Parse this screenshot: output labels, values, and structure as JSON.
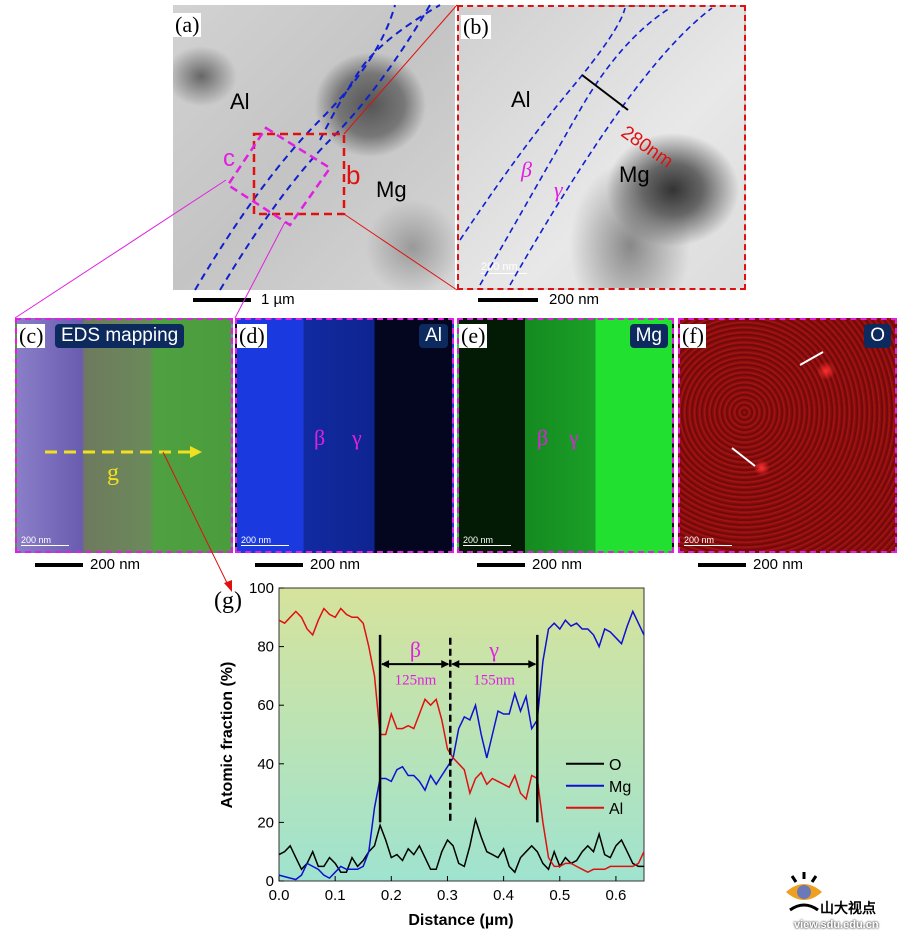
{
  "panels": {
    "a": {
      "label": "(a)",
      "phase_al": "Al",
      "phase_mg": "Mg",
      "box_c": "c",
      "box_b": "b",
      "scale": "1 µm"
    },
    "b": {
      "label": "(b)",
      "phase_al": "Al",
      "phase_mg": "Mg",
      "beta": "β",
      "gamma": "γ",
      "width": "280nm",
      "inner_scale": "200  nm",
      "scale": "200 nm"
    },
    "c": {
      "label": "(c)",
      "tag": "EDS mapping",
      "line": "g",
      "inner_scale": "200 nm",
      "scale": "200 nm"
    },
    "d": {
      "label": "(d)",
      "tag": "Al",
      "beta": "β",
      "gamma": "γ",
      "inner_scale": "200 nm",
      "scale": "200 nm"
    },
    "e": {
      "label": "(e)",
      "tag": "Mg",
      "beta": "β",
      "gamma": "γ",
      "inner_scale": "200 nm",
      "scale": "200 nm"
    },
    "f": {
      "label": "(f)",
      "tag": "O",
      "inner_scale": "200 nm",
      "scale": "200 nm"
    },
    "g": {
      "label": "(g)"
    }
  },
  "watermark": {
    "text": "山大视点",
    "url_text": "view.sdu.edu.cn"
  },
  "colors": {
    "O": "#000000",
    "Mg": "#1010d0",
    "Al": "#e01010",
    "annotation": "#e020e0"
  },
  "chart_data": {
    "type": "line",
    "title": "",
    "xlabel": "Distance (µm)",
    "ylabel": "Atomic fraction (%)",
    "xlim": [
      0,
      0.65
    ],
    "ylim": [
      0,
      100
    ],
    "xticks": [
      "0.0",
      "0.1",
      "0.2",
      "0.3",
      "0.4",
      "0.5",
      "0.6"
    ],
    "yticks": [
      "0",
      "20",
      "40",
      "60",
      "80",
      "100"
    ],
    "legend_position": "right",
    "x": [
      0,
      0.01,
      0.02,
      0.03,
      0.04,
      0.05,
      0.06,
      0.07,
      0.08,
      0.09,
      0.1,
      0.11,
      0.12,
      0.13,
      0.14,
      0.15,
      0.16,
      0.17,
      0.18,
      0.19,
      0.2,
      0.21,
      0.22,
      0.23,
      0.24,
      0.25,
      0.26,
      0.27,
      0.28,
      0.29,
      0.3,
      0.31,
      0.32,
      0.33,
      0.34,
      0.35,
      0.36,
      0.37,
      0.38,
      0.39,
      0.4,
      0.41,
      0.42,
      0.43,
      0.44,
      0.45,
      0.46,
      0.47,
      0.48,
      0.49,
      0.5,
      0.51,
      0.52,
      0.53,
      0.54,
      0.55,
      0.56,
      0.57,
      0.58,
      0.59,
      0.6,
      0.61,
      0.62,
      0.63,
      0.64,
      0.65
    ],
    "series": [
      {
        "name": "O",
        "values": [
          9,
          10,
          12,
          8,
          4,
          6,
          10,
          5,
          5,
          8,
          6,
          3,
          3,
          8,
          5,
          7,
          10,
          12,
          19,
          14,
          8,
          9,
          7,
          11,
          9,
          12,
          8,
          4,
          4,
          10,
          14,
          12,
          6,
          5,
          12,
          21,
          15,
          10,
          9,
          8,
          11,
          5,
          3,
          8,
          10,
          12,
          10,
          6,
          4,
          10,
          5,
          8,
          6,
          7,
          10,
          12,
          10,
          16,
          9,
          8,
          12,
          14,
          10,
          6,
          5,
          5
        ]
      },
      {
        "name": "Mg",
        "values": [
          2,
          1.5,
          1,
          0.5,
          2,
          6,
          5,
          4,
          2,
          1,
          3,
          5,
          4,
          4,
          4,
          5,
          10,
          25,
          35,
          35,
          34,
          38,
          39,
          36,
          36,
          34,
          31,
          36,
          33,
          36,
          39,
          42,
          52,
          56,
          55,
          60,
          50,
          42,
          50,
          58,
          57,
          57,
          64,
          58,
          63,
          52,
          55,
          75,
          86,
          88,
          86,
          89,
          87,
          88,
          86,
          86,
          84,
          80,
          86,
          85,
          83,
          81,
          87,
          92,
          88,
          84
        ]
      },
      {
        "name": "Al",
        "values": [
          89,
          88,
          90,
          92,
          90,
          86,
          84,
          89,
          93,
          91,
          90,
          93,
          91,
          90,
          90,
          88,
          80,
          70,
          50,
          50,
          57,
          52,
          52,
          53,
          52,
          57,
          62,
          60,
          62,
          55,
          45,
          42,
          40,
          38,
          30,
          35,
          37,
          33,
          35,
          34,
          33,
          32,
          36,
          30,
          28,
          36,
          35,
          20,
          8,
          5,
          5,
          6,
          6,
          5,
          4,
          3,
          4,
          4,
          4,
          5,
          5,
          5,
          5,
          5,
          6,
          10
        ]
      }
    ],
    "annotations": {
      "boundaries": [
        0.18,
        0.305,
        0.46
      ],
      "beta": "β",
      "gamma": "γ",
      "beta_width": "125nm",
      "gamma_width": "155nm"
    }
  }
}
